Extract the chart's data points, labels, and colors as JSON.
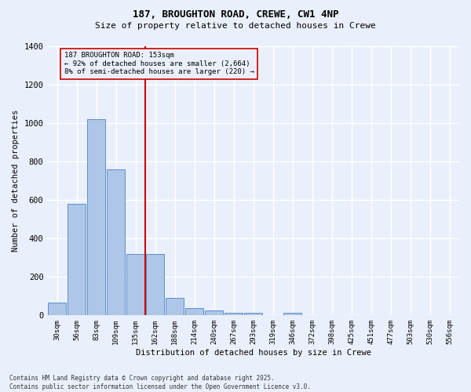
{
  "title1": "187, BROUGHTON ROAD, CREWE, CW1 4NP",
  "title2": "Size of property relative to detached houses in Crewe",
  "xlabel": "Distribution of detached houses by size in Crewe",
  "ylabel": "Number of detached properties",
  "bar_labels": [
    "30sqm",
    "56sqm",
    "83sqm",
    "109sqm",
    "135sqm",
    "162sqm",
    "188sqm",
    "214sqm",
    "240sqm",
    "267sqm",
    "293sqm",
    "319sqm",
    "346sqm",
    "372sqm",
    "398sqm",
    "425sqm",
    "451sqm",
    "477sqm",
    "503sqm",
    "530sqm",
    "556sqm"
  ],
  "bar_values": [
    65,
    580,
    1020,
    760,
    320,
    320,
    90,
    40,
    25,
    15,
    12,
    0,
    15,
    0,
    0,
    0,
    0,
    0,
    0,
    0,
    0
  ],
  "bar_color": "#aec6e8",
  "bar_edge_color": "#5b8fc9",
  "ylim": [
    0,
    1400
  ],
  "yticks": [
    0,
    200,
    400,
    600,
    800,
    1000,
    1200,
    1400
  ],
  "annotation_line1": "187 BROUGHTON ROAD: 153sqm",
  "annotation_line2": "← 92% of detached houses are smaller (2,664)",
  "annotation_line3": "8% of semi-detached houses are larger (220) →",
  "red_line_color": "#cc0000",
  "background_color": "#eaf0fb",
  "grid_color": "#ffffff",
  "footer": "Contains HM Land Registry data © Crown copyright and database right 2025.\nContains public sector information licensed under the Open Government Licence v3.0."
}
